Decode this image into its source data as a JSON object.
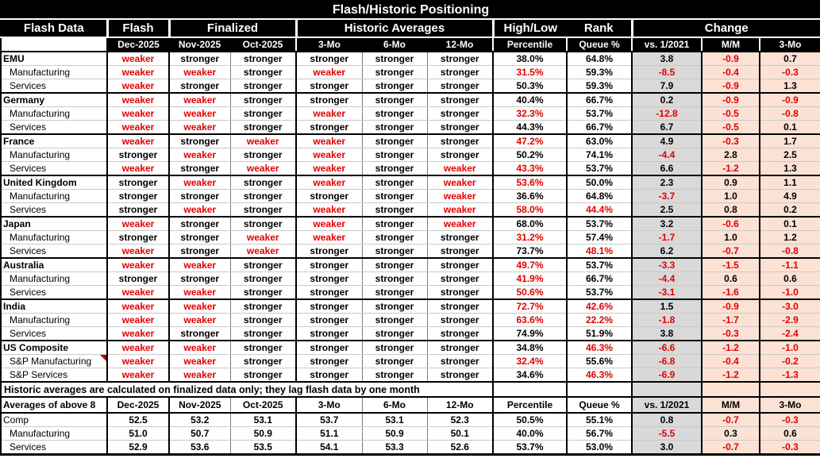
{
  "title": "Flash/Historic Positioning",
  "note": "Historic averages are calculated on finalized data only; they lag flash data by one month",
  "colors": {
    "header_bg": "#000000",
    "header_text": "#FFFFFF",
    "negative_text": "#E10000",
    "vs_column_bg": "#D9D9D9",
    "change_column_bg": "#FBE2D5"
  },
  "header": {
    "groups": [
      "Flash Data",
      "Flash",
      "Finalized",
      "Historic Averages",
      "High/Low",
      "Rank",
      "Change"
    ],
    "subcols": [
      "Dec-2025",
      "Nov-2025",
      "Oct-2025",
      "3-Mo",
      "6-Mo",
      "12-Mo",
      "Percentile",
      "Queue %",
      "vs. 1/2021",
      "M/M",
      "3-Mo"
    ]
  },
  "rows": [
    {
      "label": "EMU",
      "style": "country",
      "cells": [
        [
          "weaker",
          "r"
        ],
        [
          "stronger",
          "k"
        ],
        [
          "stronger",
          "k"
        ],
        [
          "stronger",
          "k"
        ],
        [
          "stronger",
          "k"
        ],
        [
          "stronger",
          "k"
        ],
        [
          "38.0%",
          "k"
        ],
        [
          "64.8%",
          "k"
        ],
        [
          "3.8",
          "k"
        ],
        [
          "-0.9",
          "r"
        ],
        [
          "0.7",
          "k"
        ]
      ]
    },
    {
      "label": "Manufacturing",
      "style": "sub",
      "cells": [
        [
          "weaker",
          "r"
        ],
        [
          "weaker",
          "r"
        ],
        [
          "stronger",
          "k"
        ],
        [
          "weaker",
          "r"
        ],
        [
          "stronger",
          "k"
        ],
        [
          "stronger",
          "k"
        ],
        [
          "31.5%",
          "r"
        ],
        [
          "59.3%",
          "k"
        ],
        [
          "-8.5",
          "r"
        ],
        [
          "-0.4",
          "r"
        ],
        [
          "-0.3",
          "r"
        ]
      ]
    },
    {
      "label": "Services",
      "style": "sub",
      "cells": [
        [
          "weaker",
          "r"
        ],
        [
          "stronger",
          "k"
        ],
        [
          "stronger",
          "k"
        ],
        [
          "stronger",
          "k"
        ],
        [
          "stronger",
          "k"
        ],
        [
          "stronger",
          "k"
        ],
        [
          "50.3%",
          "k"
        ],
        [
          "59.3%",
          "k"
        ],
        [
          "7.9",
          "k"
        ],
        [
          "-0.9",
          "r"
        ],
        [
          "1.3",
          "k"
        ]
      ]
    },
    {
      "label": "Germany",
      "style": "country",
      "cells": [
        [
          "weaker",
          "r"
        ],
        [
          "weaker",
          "r"
        ],
        [
          "stronger",
          "k"
        ],
        [
          "stronger",
          "k"
        ],
        [
          "stronger",
          "k"
        ],
        [
          "stronger",
          "k"
        ],
        [
          "40.4%",
          "k"
        ],
        [
          "66.7%",
          "k"
        ],
        [
          "0.2",
          "k"
        ],
        [
          "-0.9",
          "r"
        ],
        [
          "-0.9",
          "r"
        ]
      ]
    },
    {
      "label": "Manufacturing",
      "style": "sub",
      "cells": [
        [
          "weaker",
          "r"
        ],
        [
          "weaker",
          "r"
        ],
        [
          "stronger",
          "k"
        ],
        [
          "weaker",
          "r"
        ],
        [
          "stronger",
          "k"
        ],
        [
          "stronger",
          "k"
        ],
        [
          "32.3%",
          "r"
        ],
        [
          "53.7%",
          "k"
        ],
        [
          "-12.8",
          "r"
        ],
        [
          "-0.5",
          "r"
        ],
        [
          "-0.8",
          "r"
        ]
      ]
    },
    {
      "label": "Services",
      "style": "sub",
      "cells": [
        [
          "weaker",
          "r"
        ],
        [
          "weaker",
          "r"
        ],
        [
          "stronger",
          "k"
        ],
        [
          "stronger",
          "k"
        ],
        [
          "stronger",
          "k"
        ],
        [
          "stronger",
          "k"
        ],
        [
          "44.3%",
          "k"
        ],
        [
          "66.7%",
          "k"
        ],
        [
          "6.7",
          "k"
        ],
        [
          "-0.5",
          "r"
        ],
        [
          "0.1",
          "k"
        ]
      ]
    },
    {
      "label": "France",
      "style": "country",
      "cells": [
        [
          "weaker",
          "r"
        ],
        [
          "stronger",
          "k"
        ],
        [
          "weaker",
          "r"
        ],
        [
          "weaker",
          "r"
        ],
        [
          "stronger",
          "k"
        ],
        [
          "stronger",
          "k"
        ],
        [
          "47.2%",
          "r"
        ],
        [
          "63.0%",
          "k"
        ],
        [
          "4.9",
          "k"
        ],
        [
          "-0.3",
          "r"
        ],
        [
          "1.7",
          "k"
        ]
      ]
    },
    {
      "label": "Manufacturing",
      "style": "sub",
      "cells": [
        [
          "stronger",
          "k"
        ],
        [
          "weaker",
          "r"
        ],
        [
          "stronger",
          "k"
        ],
        [
          "weaker",
          "r"
        ],
        [
          "stronger",
          "k"
        ],
        [
          "stronger",
          "k"
        ],
        [
          "50.2%",
          "k"
        ],
        [
          "74.1%",
          "k"
        ],
        [
          "-4.4",
          "r"
        ],
        [
          "2.8",
          "k"
        ],
        [
          "2.5",
          "k"
        ]
      ]
    },
    {
      "label": "Services",
      "style": "sub",
      "cells": [
        [
          "weaker",
          "r"
        ],
        [
          "stronger",
          "k"
        ],
        [
          "weaker",
          "r"
        ],
        [
          "weaker",
          "r"
        ],
        [
          "stronger",
          "k"
        ],
        [
          "weaker",
          "r"
        ],
        [
          "43.3%",
          "r"
        ],
        [
          "53.7%",
          "k"
        ],
        [
          "6.6",
          "k"
        ],
        [
          "-1.2",
          "r"
        ],
        [
          "1.3",
          "k"
        ]
      ]
    },
    {
      "label": "United Kingdom",
      "style": "country",
      "cells": [
        [
          "stronger",
          "k"
        ],
        [
          "weaker",
          "r"
        ],
        [
          "stronger",
          "k"
        ],
        [
          "weaker",
          "r"
        ],
        [
          "stronger",
          "k"
        ],
        [
          "weaker",
          "r"
        ],
        [
          "53.6%",
          "r"
        ],
        [
          "50.0%",
          "k"
        ],
        [
          "2.3",
          "k"
        ],
        [
          "0.9",
          "k"
        ],
        [
          "1.1",
          "k"
        ]
      ]
    },
    {
      "label": "Manufacturing",
      "style": "sub",
      "cells": [
        [
          "stronger",
          "k"
        ],
        [
          "stronger",
          "k"
        ],
        [
          "stronger",
          "k"
        ],
        [
          "stronger",
          "k"
        ],
        [
          "stronger",
          "k"
        ],
        [
          "weaker",
          "r"
        ],
        [
          "36.6%",
          "k"
        ],
        [
          "64.8%",
          "k"
        ],
        [
          "-3.7",
          "r"
        ],
        [
          "1.0",
          "k"
        ],
        [
          "4.9",
          "k"
        ]
      ]
    },
    {
      "label": "Services",
      "style": "sub",
      "cells": [
        [
          "stronger",
          "k"
        ],
        [
          "weaker",
          "r"
        ],
        [
          "stronger",
          "k"
        ],
        [
          "weaker",
          "r"
        ],
        [
          "stronger",
          "k"
        ],
        [
          "weaker",
          "r"
        ],
        [
          "58.0%",
          "r"
        ],
        [
          "44.4%",
          "r"
        ],
        [
          "2.5",
          "k"
        ],
        [
          "0.8",
          "k"
        ],
        [
          "0.2",
          "k"
        ]
      ]
    },
    {
      "label": "Japan",
      "style": "country",
      "cells": [
        [
          "weaker",
          "r"
        ],
        [
          "stronger",
          "k"
        ],
        [
          "stronger",
          "k"
        ],
        [
          "weaker",
          "r"
        ],
        [
          "stronger",
          "k"
        ],
        [
          "weaker",
          "r"
        ],
        [
          "68.0%",
          "k"
        ],
        [
          "53.7%",
          "k"
        ],
        [
          "3.2",
          "k"
        ],
        [
          "-0.6",
          "r"
        ],
        [
          "0.1",
          "k"
        ]
      ]
    },
    {
      "label": "Manufacturing",
      "style": "sub",
      "cells": [
        [
          "stronger",
          "k"
        ],
        [
          "stronger",
          "k"
        ],
        [
          "weaker",
          "r"
        ],
        [
          "weaker",
          "r"
        ],
        [
          "stronger",
          "k"
        ],
        [
          "stronger",
          "k"
        ],
        [
          "31.2%",
          "r"
        ],
        [
          "57.4%",
          "k"
        ],
        [
          "-1.7",
          "r"
        ],
        [
          "1.0",
          "k"
        ],
        [
          "1.2",
          "k"
        ]
      ]
    },
    {
      "label": "Services",
      "style": "sub",
      "cells": [
        [
          "weaker",
          "r"
        ],
        [
          "stronger",
          "k"
        ],
        [
          "weaker",
          "r"
        ],
        [
          "stronger",
          "k"
        ],
        [
          "stronger",
          "k"
        ],
        [
          "stronger",
          "k"
        ],
        [
          "73.7%",
          "k"
        ],
        [
          "48.1%",
          "r"
        ],
        [
          "6.2",
          "k"
        ],
        [
          "-0.7",
          "r"
        ],
        [
          "-0.8",
          "r"
        ]
      ]
    },
    {
      "label": "Australia",
      "style": "country",
      "cells": [
        [
          "weaker",
          "r"
        ],
        [
          "weaker",
          "r"
        ],
        [
          "stronger",
          "k"
        ],
        [
          "stronger",
          "k"
        ],
        [
          "stronger",
          "k"
        ],
        [
          "stronger",
          "k"
        ],
        [
          "49.7%",
          "r"
        ],
        [
          "53.7%",
          "k"
        ],
        [
          "-3.3",
          "r"
        ],
        [
          "-1.5",
          "r"
        ],
        [
          "-1.1",
          "r"
        ]
      ]
    },
    {
      "label": "Manufacturing",
      "style": "sub",
      "cells": [
        [
          "stronger",
          "k"
        ],
        [
          "stronger",
          "k"
        ],
        [
          "stronger",
          "k"
        ],
        [
          "stronger",
          "k"
        ],
        [
          "stronger",
          "k"
        ],
        [
          "stronger",
          "k"
        ],
        [
          "41.9%",
          "r"
        ],
        [
          "66.7%",
          "k"
        ],
        [
          "-4.4",
          "r"
        ],
        [
          "0.6",
          "k"
        ],
        [
          "0.6",
          "k"
        ]
      ]
    },
    {
      "label": "Services",
      "style": "sub",
      "cells": [
        [
          "weaker",
          "r"
        ],
        [
          "weaker",
          "r"
        ],
        [
          "stronger",
          "k"
        ],
        [
          "stronger",
          "k"
        ],
        [
          "stronger",
          "k"
        ],
        [
          "stronger",
          "k"
        ],
        [
          "50.6%",
          "r"
        ],
        [
          "53.7%",
          "k"
        ],
        [
          "-3.1",
          "r"
        ],
        [
          "-1.6",
          "r"
        ],
        [
          "-1.0",
          "r"
        ]
      ]
    },
    {
      "label": "India",
      "style": "country",
      "cells": [
        [
          "weaker",
          "r"
        ],
        [
          "weaker",
          "r"
        ],
        [
          "stronger",
          "k"
        ],
        [
          "stronger",
          "k"
        ],
        [
          "stronger",
          "k"
        ],
        [
          "stronger",
          "k"
        ],
        [
          "72.7%",
          "r"
        ],
        [
          "42.6%",
          "r"
        ],
        [
          "1.5",
          "k"
        ],
        [
          "-0.9",
          "r"
        ],
        [
          "-3.0",
          "r"
        ]
      ]
    },
    {
      "label": "Manufacturing",
      "style": "sub",
      "cells": [
        [
          "weaker",
          "r"
        ],
        [
          "weaker",
          "r"
        ],
        [
          "stronger",
          "k"
        ],
        [
          "stronger",
          "k"
        ],
        [
          "stronger",
          "k"
        ],
        [
          "stronger",
          "k"
        ],
        [
          "63.6%",
          "r"
        ],
        [
          "22.2%",
          "r"
        ],
        [
          "-1.8",
          "r"
        ],
        [
          "-1.7",
          "r"
        ],
        [
          "-2.9",
          "r"
        ]
      ]
    },
    {
      "label": "Services",
      "style": "sub",
      "cells": [
        [
          "weaker",
          "r"
        ],
        [
          "stronger",
          "k"
        ],
        [
          "stronger",
          "k"
        ],
        [
          "stronger",
          "k"
        ],
        [
          "stronger",
          "k"
        ],
        [
          "stronger",
          "k"
        ],
        [
          "74.9%",
          "k"
        ],
        [
          "51.9%",
          "k"
        ],
        [
          "3.8",
          "k"
        ],
        [
          "-0.3",
          "r"
        ],
        [
          "-2.4",
          "r"
        ]
      ]
    },
    {
      "label": "US Composite",
      "style": "country",
      "cells": [
        [
          "weaker",
          "r"
        ],
        [
          "weaker",
          "r"
        ],
        [
          "stronger",
          "k"
        ],
        [
          "stronger",
          "k"
        ],
        [
          "stronger",
          "k"
        ],
        [
          "stronger",
          "k"
        ],
        [
          "34.8%",
          "k"
        ],
        [
          "46.3%",
          "r"
        ],
        [
          "-6.6",
          "r"
        ],
        [
          "-1.2",
          "r"
        ],
        [
          "-1.0",
          "r"
        ]
      ]
    },
    {
      "label": "S&P Manufacturing",
      "style": "sub",
      "marker": true,
      "cells": [
        [
          "weaker",
          "r"
        ],
        [
          "weaker",
          "r"
        ],
        [
          "stronger",
          "k"
        ],
        [
          "stronger",
          "k"
        ],
        [
          "stronger",
          "k"
        ],
        [
          "stronger",
          "k"
        ],
        [
          "32.4%",
          "r"
        ],
        [
          "55.6%",
          "k"
        ],
        [
          "-6.8",
          "r"
        ],
        [
          "-0.4",
          "r"
        ],
        [
          "-0.2",
          "r"
        ]
      ]
    },
    {
      "label": "S&P Services",
      "style": "sub",
      "cells": [
        [
          "weaker",
          "r"
        ],
        [
          "weaker",
          "r"
        ],
        [
          "stronger",
          "k"
        ],
        [
          "stronger",
          "k"
        ],
        [
          "stronger",
          "k"
        ],
        [
          "stronger",
          "k"
        ],
        [
          "34.6%",
          "k"
        ],
        [
          "46.3%",
          "r"
        ],
        [
          "-6.9",
          "r"
        ],
        [
          "-1.2",
          "r"
        ],
        [
          "-1.3",
          "r"
        ]
      ]
    }
  ],
  "avg": {
    "header": [
      "Averages of above 8",
      "Dec-2025",
      "Nov-2025",
      "Oct-2025",
      "3-Mo",
      "6-Mo",
      "12-Mo",
      "Percentile",
      "Queue %",
      "vs. 1/2021",
      "M/M",
      "3-Mo"
    ],
    "rows": [
      {
        "label": "Comp",
        "style": "plain",
        "cells": [
          [
            "52.5",
            "k"
          ],
          [
            "53.2",
            "k"
          ],
          [
            "53.1",
            "k"
          ],
          [
            "53.7",
            "k"
          ],
          [
            "53.1",
            "k"
          ],
          [
            "52.3",
            "k"
          ],
          [
            "50.5%",
            "k"
          ],
          [
            "55.1%",
            "k"
          ],
          [
            "0.8",
            "k"
          ],
          [
            "-0.7",
            "r"
          ],
          [
            "-0.3",
            "r"
          ]
        ]
      },
      {
        "label": "Manufacturing",
        "style": "sub",
        "cells": [
          [
            "51.0",
            "k"
          ],
          [
            "50.7",
            "k"
          ],
          [
            "50.9",
            "k"
          ],
          [
            "51.1",
            "k"
          ],
          [
            "50.9",
            "k"
          ],
          [
            "50.1",
            "k"
          ],
          [
            "40.0%",
            "k"
          ],
          [
            "56.7%",
            "k"
          ],
          [
            "-5.5",
            "r"
          ],
          [
            "0.3",
            "k"
          ],
          [
            "0.6",
            "k"
          ]
        ]
      },
      {
        "label": "Services",
        "style": "sub",
        "cells": [
          [
            "52.9",
            "k"
          ],
          [
            "53.6",
            "k"
          ],
          [
            "53.5",
            "k"
          ],
          [
            "54.1",
            "k"
          ],
          [
            "53.3",
            "k"
          ],
          [
            "52.6",
            "k"
          ],
          [
            "53.7%",
            "k"
          ],
          [
            "53.0%",
            "k"
          ],
          [
            "3.0",
            "k"
          ],
          [
            "-0.7",
            "r"
          ],
          [
            "-0.3",
            "r"
          ]
        ]
      }
    ]
  }
}
